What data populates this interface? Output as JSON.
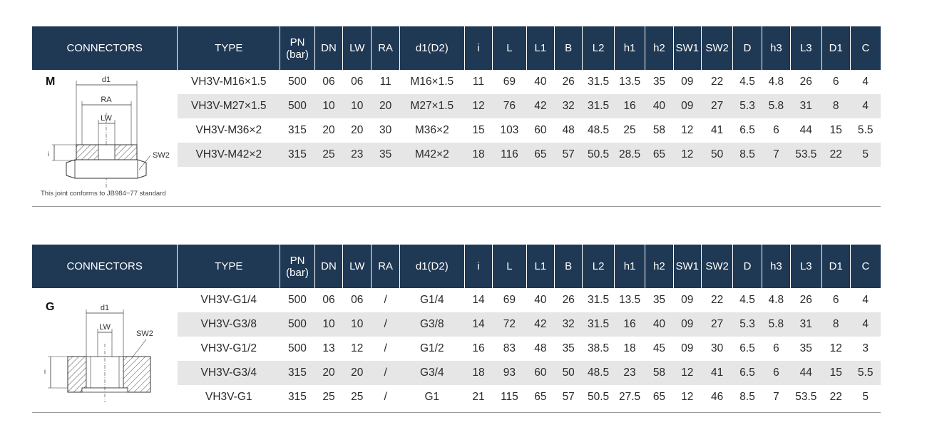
{
  "headers": [
    "CONNECTORS",
    "TYPE",
    "PN\n(bar)",
    "DN",
    "LW",
    "RA",
    "d1(D2)",
    "i",
    "L",
    "L1",
    "B",
    "L2",
    "h1",
    "h2",
    "SW1",
    "SW2",
    "D",
    "h3",
    "L3",
    "D1",
    "C"
  ],
  "pn_line1": "PN",
  "pn_line2": "(bar)",
  "colors": {
    "header_bg": "#1f3853",
    "row_alt": "#e6e6e6"
  },
  "sections": [
    {
      "letter": "M",
      "note": "This joint conforms to JB984−77 standard",
      "diagram_labels": {
        "d1": "d1",
        "ra": "RA",
        "lw": "LW",
        "sw2": "SW2",
        "i": "i"
      },
      "rows": [
        [
          "VH3V-M16×1.5",
          "500",
          "06",
          "06",
          "11",
          "M16×1.5",
          "11",
          "69",
          "40",
          "26",
          "31.5",
          "13.5",
          "35",
          "09",
          "22",
          "4.5",
          "4.8",
          "26",
          "6",
          "4"
        ],
        [
          "VH3V-M27×1.5",
          "500",
          "10",
          "10",
          "20",
          "M27×1.5",
          "12",
          "76",
          "42",
          "32",
          "31.5",
          "16",
          "40",
          "09",
          "27",
          "5.3",
          "5.8",
          "31",
          "8",
          "4"
        ],
        [
          "VH3V-M36×2",
          "315",
          "20",
          "20",
          "30",
          "M36×2",
          "15",
          "103",
          "60",
          "48",
          "48.5",
          "25",
          "58",
          "12",
          "41",
          "6.5",
          "6",
          "44",
          "15",
          "5.5"
        ],
        [
          "VH3V-M42×2",
          "315",
          "25",
          "23",
          "35",
          "M42×2",
          "18",
          "116",
          "65",
          "57",
          "50.5",
          "28.5",
          "65",
          "12",
          "50",
          "8.5",
          "7",
          "53.5",
          "22",
          "5"
        ]
      ]
    },
    {
      "letter": "G",
      "diagram_labels": {
        "d1": "d1",
        "lw": "LW",
        "sw2": "SW2",
        "i": "i"
      },
      "rows": [
        [
          "VH3V-G1/4",
          "500",
          "06",
          "06",
          "/",
          "G1/4",
          "14",
          "69",
          "40",
          "26",
          "31.5",
          "13.5",
          "35",
          "09",
          "22",
          "4.5",
          "4.8",
          "26",
          "6",
          "4"
        ],
        [
          "VH3V-G3/8",
          "500",
          "10",
          "10",
          "/",
          "G3/8",
          "14",
          "72",
          "42",
          "32",
          "31.5",
          "16",
          "40",
          "09",
          "27",
          "5.3",
          "5.8",
          "31",
          "8",
          "4"
        ],
        [
          "VH3V-G1/2",
          "500",
          "13",
          "12",
          "/",
          "G1/2",
          "16",
          "83",
          "48",
          "35",
          "38.5",
          "18",
          "45",
          "09",
          "30",
          "6.5",
          "6",
          "35",
          "12",
          "3"
        ],
        [
          "VH3V-G3/4",
          "315",
          "20",
          "20",
          "/",
          "G3/4",
          "18",
          "93",
          "60",
          "50",
          "48.5",
          "23",
          "58",
          "12",
          "41",
          "6.5",
          "6",
          "44",
          "15",
          "5.5"
        ],
        [
          "VH3V-G1",
          "315",
          "25",
          "25",
          "/",
          "G1",
          "21",
          "115",
          "65",
          "57",
          "50.5",
          "27.5",
          "65",
          "12",
          "46",
          "8.5",
          "7",
          "53.5",
          "22",
          "5"
        ]
      ]
    }
  ]
}
